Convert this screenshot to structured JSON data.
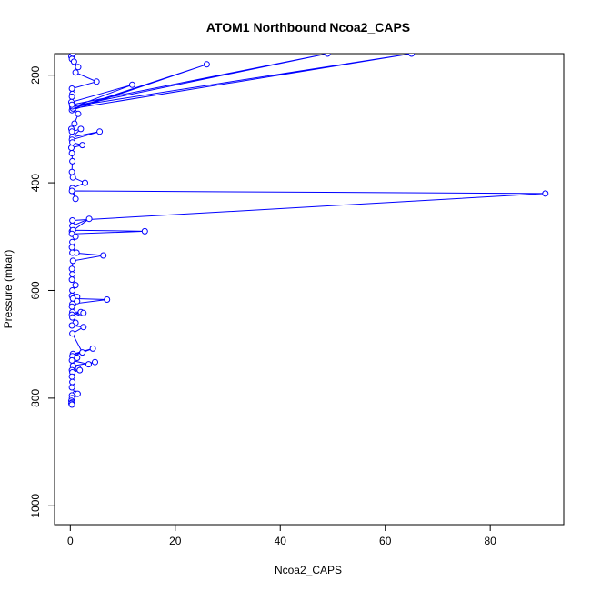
{
  "chart_data": {
    "type": "line",
    "title": "ATOM1 Northbound Ncoa2_CAPS",
    "xlabel": "Ncoa2_CAPS",
    "ylabel": "Pressure (mbar)",
    "xlim": [
      -3,
      94
    ],
    "ylim": [
      1035,
      160
    ],
    "y_reversed": true,
    "x_ticks": [
      0,
      20,
      40,
      60,
      80
    ],
    "y_ticks": [
      200,
      400,
      600,
      800,
      1000
    ],
    "x_tick_labels": [
      "0",
      "20",
      "40",
      "60",
      "80"
    ],
    "y_tick_labels": [
      "200",
      "400",
      "600",
      "800",
      "1000"
    ],
    "grid": false,
    "line_color": "#0000ff",
    "marker": "open-circle",
    "series": [
      {
        "x": [
          0.2,
          0.3,
          0.5,
          0.7,
          1.5,
          1.0,
          5.0,
          0.3,
          0.4,
          0.3,
          0.2,
          11.8,
          0.4,
          0.3,
          26.0,
          0.5,
          65.0,
          0.4,
          49.0,
          0.3,
          1.5,
          0.8,
          0.2,
          0.3,
          2.0,
          0.4,
          5.6,
          0.3,
          0.4,
          2.3,
          0.2,
          0.3,
          0.4,
          0.3,
          0.5,
          2.8,
          0.4,
          1.0,
          0.3,
          90.5,
          0.4,
          0.3,
          3.6,
          0.4,
          0.5,
          14.2,
          0.3,
          1.0,
          0.4,
          0.3,
          1.2,
          0.4,
          6.3,
          0.5,
          0.3,
          0.4,
          0.3,
          1.0,
          0.4,
          0.3,
          1.3,
          0.5,
          7.0,
          0.4,
          0.3,
          1.3,
          0.4,
          2.0,
          0.3,
          2.5,
          0.4,
          1.0,
          0.3,
          2.5,
          0.4,
          2.3,
          0.5,
          4.3,
          0.4,
          1.3,
          0.3,
          3.5,
          4.7,
          0.5,
          1.5,
          0.3,
          1.8,
          0.4,
          0.3,
          0.4,
          0.3,
          1.0,
          0.3,
          0.4,
          1.4,
          0.3,
          0.2,
          0.3,
          0.2,
          0.3
        ],
        "y": [
          165,
          170,
          160,
          175,
          185,
          195,
          212,
          225,
          235,
          240,
          250,
          218,
          260,
          265,
          180,
          262,
          160,
          258,
          160,
          255,
          272,
          290,
          300,
          305,
          300,
          315,
          305,
          320,
          325,
          330,
          335,
          345,
          360,
          380,
          390,
          400,
          410,
          430,
          415,
          420,
          470,
          490,
          467,
          480,
          488,
          490,
          495,
          500,
          510,
          520,
          530,
          530,
          535,
          545,
          560,
          570,
          580,
          590,
          600,
          610,
          612,
          615,
          617,
          625,
          630,
          620,
          640,
          640,
          645,
          642,
          650,
          660,
          665,
          668,
          680,
          715,
          718,
          708,
          722,
          725,
          730,
          737,
          733,
          740,
          745,
          748,
          748,
          752,
          760,
          770,
          780,
          792,
          795,
          800,
          792,
          800,
          805,
          808,
          810,
          812
        ]
      }
    ]
  }
}
